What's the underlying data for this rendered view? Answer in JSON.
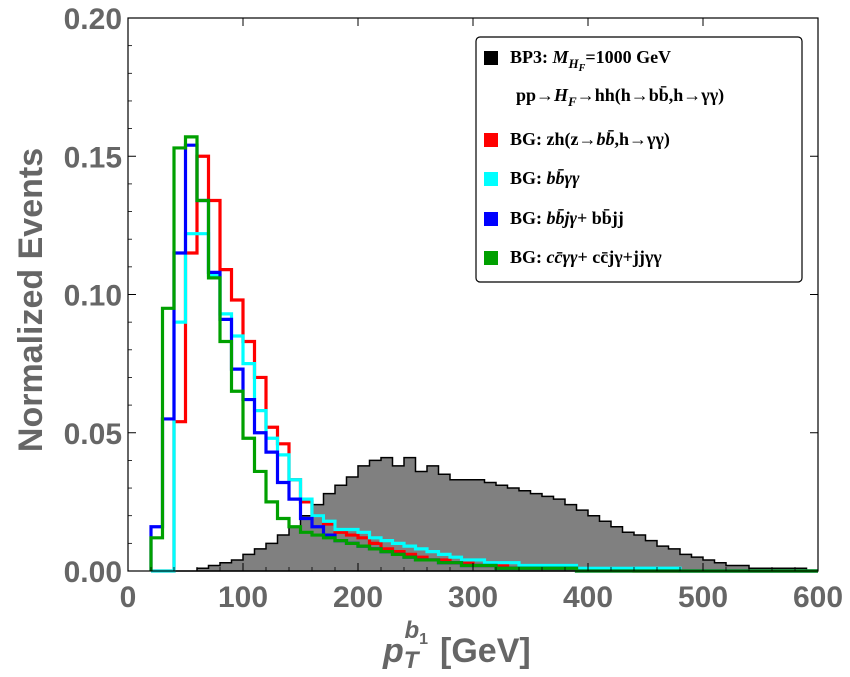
{
  "chart_data": {
    "type": "histogram",
    "xlabel_main": "p",
    "xlabel_sub": "T",
    "xlabel_sup_main": "b",
    "xlabel_sup_sub": "1",
    "xlabel_unit": "[GeV]",
    "ylabel": "Normalized Events",
    "xlim": [
      0,
      600
    ],
    "ylim": [
      0,
      0.2
    ],
    "x_ticks": [
      "0",
      "100",
      "200",
      "300",
      "400",
      "500",
      "600"
    ],
    "y_ticks": [
      "0.00",
      "0.05",
      "0.10",
      "0.15",
      "0.20"
    ],
    "x_tick_values": [
      0,
      100,
      200,
      300,
      400,
      500,
      600
    ],
    "y_tick_values": [
      0,
      0.05,
      0.1,
      0.15,
      0.2
    ],
    "grid": false,
    "legend_position": "top-right",
    "bin_edges": [
      20,
      30,
      40,
      50,
      60,
      70,
      80,
      90,
      100,
      110,
      120,
      130,
      140,
      150,
      160,
      170,
      180,
      190,
      200,
      210,
      220,
      230,
      240,
      250,
      260,
      270,
      280,
      290,
      300,
      310,
      320,
      330,
      340,
      350,
      360,
      370,
      380,
      390,
      400,
      410,
      420,
      430,
      440,
      450,
      460,
      470,
      480,
      490,
      500,
      510,
      520,
      530,
      540,
      550,
      560,
      570,
      580,
      590,
      600
    ],
    "series": [
      {
        "name": "BP3",
        "color": "#000000",
        "fill": "#808080",
        "values": [
          0,
          0,
          0,
          0,
          0.001,
          0.002,
          0.003,
          0.004,
          0.006,
          0.008,
          0.01,
          0.013,
          0.016,
          0.02,
          0.024,
          0.028,
          0.031,
          0.034,
          0.038,
          0.04,
          0.041,
          0.038,
          0.041,
          0.036,
          0.038,
          0.035,
          0.033,
          0.033,
          0.033,
          0.032,
          0.031,
          0.03,
          0.029,
          0.028,
          0.027,
          0.026,
          0.024,
          0.022,
          0.02,
          0.018,
          0.016,
          0.014,
          0.013,
          0.011,
          0.009,
          0.008,
          0.006,
          0.005,
          0.004,
          0.003,
          0.002,
          0.002,
          0.001,
          0.001,
          0.001,
          0.001,
          0.001,
          0.0
        ]
      },
      {
        "name": "BG: zh",
        "color": "#ff0000",
        "values": [
          0,
          0,
          0.054,
          0.115,
          0.15,
          0.134,
          0.109,
          0.098,
          0.083,
          0.07,
          0.052,
          0.046,
          0.033,
          0.025,
          0.02,
          0.017,
          0.014,
          0.013,
          0.012,
          0.01,
          0.008,
          0.007,
          0.006,
          0.005,
          0.004,
          0.004,
          0.003,
          0.003,
          0.002,
          0.002,
          0.002,
          0.001,
          0.001,
          0.001,
          0.001,
          0.001,
          0.001,
          0.001,
          0.001,
          0.001,
          0.001,
          0.001,
          0.0,
          0.0,
          0.0,
          0.0,
          0.0,
          0.0,
          0.0,
          0.0,
          0.0,
          0.0,
          0.0,
          0.0,
          0.0,
          0.0,
          0.0,
          0.0
        ]
      },
      {
        "name": "BG: bbγγ",
        "color": "#00ffff",
        "values": [
          0,
          0,
          0.09,
          0.122,
          0.122,
          0.107,
          0.093,
          0.085,
          0.075,
          0.058,
          0.048,
          0.042,
          0.033,
          0.026,
          0.02,
          0.018,
          0.015,
          0.015,
          0.014,
          0.012,
          0.011,
          0.01,
          0.009,
          0.008,
          0.007,
          0.006,
          0.005,
          0.004,
          0.004,
          0.003,
          0.003,
          0.003,
          0.002,
          0.002,
          0.002,
          0.002,
          0.002,
          0.001,
          0.001,
          0.001,
          0.001,
          0.001,
          0.001,
          0.001,
          0.001,
          0.001,
          0.0,
          0.0,
          0.0,
          0.0,
          0.0,
          0.0,
          0.0,
          0.0,
          0.0,
          0.0,
          0.0,
          0.0
        ]
      },
      {
        "name": "BG: bbjγ + bbjj",
        "color": "#0000ff",
        "values": [
          0.016,
          0.055,
          0.115,
          0.154,
          0.134,
          0.108,
          0.091,
          0.073,
          0.062,
          0.05,
          0.043,
          0.032,
          0.026,
          0.019,
          0.016,
          0.013,
          0.011,
          0.01,
          0.009,
          0.008,
          0.007,
          0.006,
          0.005,
          0.004,
          0.004,
          0.003,
          0.003,
          0.002,
          0.002,
          0.002,
          0.001,
          0.001,
          0.001,
          0.001,
          0.001,
          0.001,
          0.001,
          0.0,
          0.0,
          0.0,
          0.0,
          0.0,
          0.0,
          0.0,
          0.0,
          0.0,
          0.0,
          0.0,
          0.0,
          0.0,
          0.0,
          0.0,
          0.0,
          0.0,
          0.0,
          0.0,
          0.0,
          0.0
        ]
      },
      {
        "name": "BG: ccγγ + ccjγ + jjγγ",
        "color": "#00a000",
        "values": [
          0.012,
          0.095,
          0.153,
          0.157,
          0.134,
          0.106,
          0.083,
          0.065,
          0.048,
          0.036,
          0.025,
          0.019,
          0.016,
          0.014,
          0.013,
          0.012,
          0.011,
          0.01,
          0.009,
          0.008,
          0.007,
          0.006,
          0.005,
          0.004,
          0.004,
          0.003,
          0.003,
          0.002,
          0.002,
          0.002,
          0.001,
          0.001,
          0.001,
          0.001,
          0.001,
          0.001,
          0.001,
          0.0,
          0.0,
          0.0,
          0.0,
          0.0,
          0.0,
          0.0,
          0.0,
          0.0,
          0.0,
          0.0,
          0.0,
          0.0,
          0.0,
          0.0,
          0.0,
          0.0,
          0.0,
          0.0,
          0.0,
          0.0
        ]
      }
    ]
  },
  "legend": {
    "items": [
      {
        "color": "#000000",
        "pre": "BP3: ",
        "it": "M",
        "sub": "H",
        "subsub": "F",
        "post": "=1000 GeV"
      },
      {
        "color": "",
        "pre": "pp→",
        "it": "H",
        "sub": "F",
        "subsub": "",
        "post": "→hh(h→bb̄,h→γγ)"
      },
      {
        "color": "#ff0000",
        "pre": "BG: zh(z→",
        "it": "bb̄",
        "sub": "",
        "subsub": "",
        "post": ",h→γγ)"
      },
      {
        "color": "#00ffff",
        "pre": "BG: ",
        "it": "bb̄γγ",
        "sub": "",
        "subsub": "",
        "post": ""
      },
      {
        "color": "#0000ff",
        "pre": "BG: ",
        "it": "bb̄jγ",
        "sub": "",
        "subsub": "",
        "post": "+ bb̄jj"
      },
      {
        "color": "#00a000",
        "pre": "BG:  ",
        "it": "cc̄γγ",
        "sub": "",
        "subsub": "",
        "post": "+ cc̄jγ+jjγγ"
      }
    ]
  }
}
